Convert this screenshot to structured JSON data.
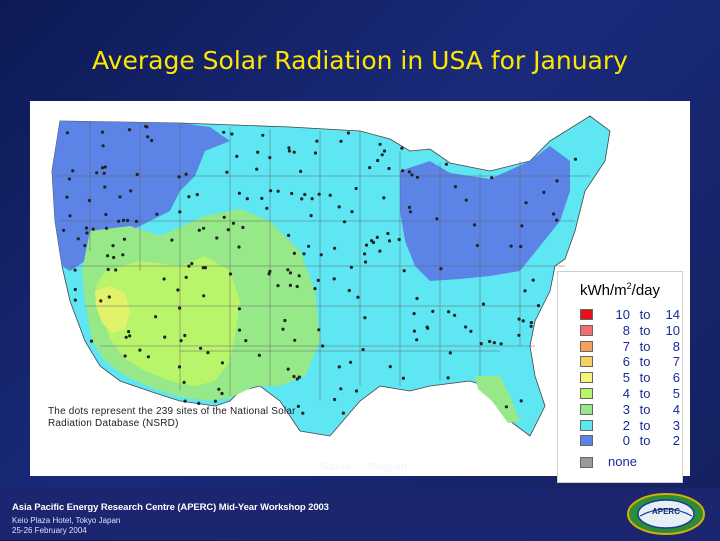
{
  "slide": {
    "title": "Average Solar Radiation in USA for January"
  },
  "map": {
    "description_note": "The dots represent the 239 sites of the National Solar Radiation Database (NSRD)",
    "source_note": "Source: ... Program",
    "colors": {
      "band_0_2": "#5b84e6",
      "band_2_3": "#5ee6f2",
      "band_3_4": "#97e888",
      "band_4_5": "#b9f56a",
      "band_5_6": "#e2f26a",
      "state_lines": "#666666",
      "site_dots": "#222222"
    }
  },
  "legend": {
    "title": "kWh/m",
    "title_exp": "2",
    "title_suffix": "/day",
    "rows": [
      {
        "low": "10",
        "sep": "to",
        "high": "14",
        "color": "#e8101a"
      },
      {
        "low": "8",
        "sep": "to",
        "high": "10",
        "color": "#f07070"
      },
      {
        "low": "7",
        "sep": "to",
        "high": "8",
        "color": "#f6a060"
      },
      {
        "low": "6",
        "sep": "to",
        "high": "7",
        "color": "#f6d060"
      },
      {
        "low": "5",
        "sep": "to",
        "high": "6",
        "color": "#f4f47a"
      },
      {
        "low": "4",
        "sep": "to",
        "high": "5",
        "color": "#b8f56a"
      },
      {
        "low": "3",
        "sep": "to",
        "high": "4",
        "color": "#97e888"
      },
      {
        "low": "2",
        "sep": "to",
        "high": "3",
        "color": "#5ee6f2"
      },
      {
        "low": "0",
        "sep": "to",
        "high": "2",
        "color": "#5b84e6"
      }
    ],
    "none_label": "none",
    "none_color": "#999999"
  },
  "footer": {
    "line1": "Asia Pacific Energy Research Centre (APERC) Mid-Year Workshop 2003",
    "line2": "Keio Plaza Hotel, Tokyo Japan",
    "line3": "25-26 February 2004",
    "logo_text": "APERC"
  }
}
